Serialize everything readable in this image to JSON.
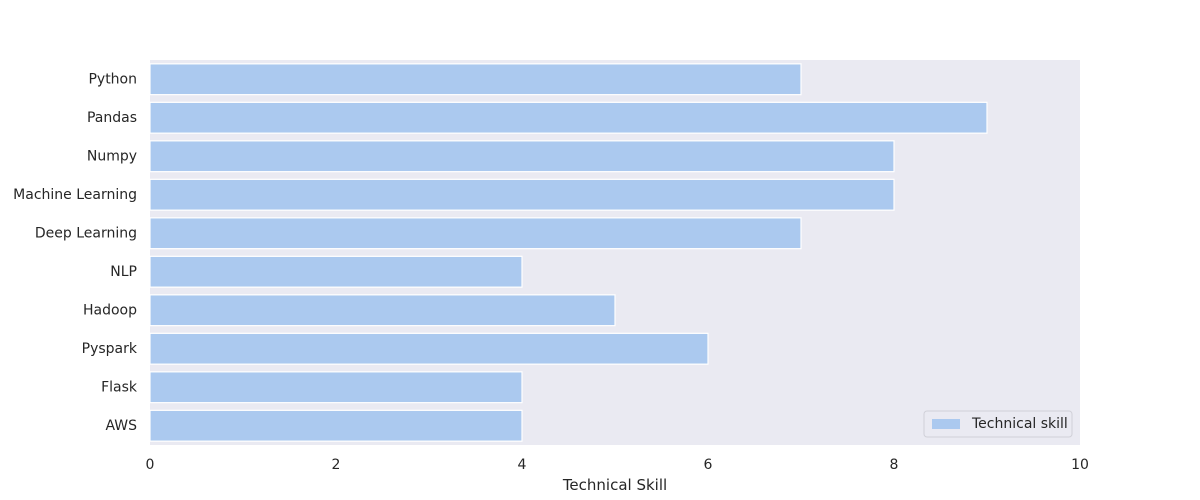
{
  "chart_data": {
    "type": "bar",
    "orientation": "horizontal",
    "title": "",
    "xlabel": "Technical Skill",
    "ylabel": "",
    "xlim": [
      0,
      10
    ],
    "x_ticks": [
      "0",
      "2",
      "4",
      "6",
      "8",
      "10"
    ],
    "grid": false,
    "legend_position": "lower-right",
    "categories": [
      "Python",
      "Pandas",
      "Numpy",
      "Machine Learning",
      "Deep Learning",
      "NLP",
      "Hadoop",
      "Pyspark",
      "Flask",
      "AWS"
    ],
    "series": [
      {
        "name": "Technical skill",
        "values": [
          7,
          9,
          8,
          8,
          7,
          4,
          5,
          6,
          4,
          4
        ]
      }
    ],
    "colors": {
      "bar": "#abc9ef",
      "plot_background": "#eaeaf2",
      "bar_edge": "#ffffff",
      "text": "#262626"
    }
  }
}
